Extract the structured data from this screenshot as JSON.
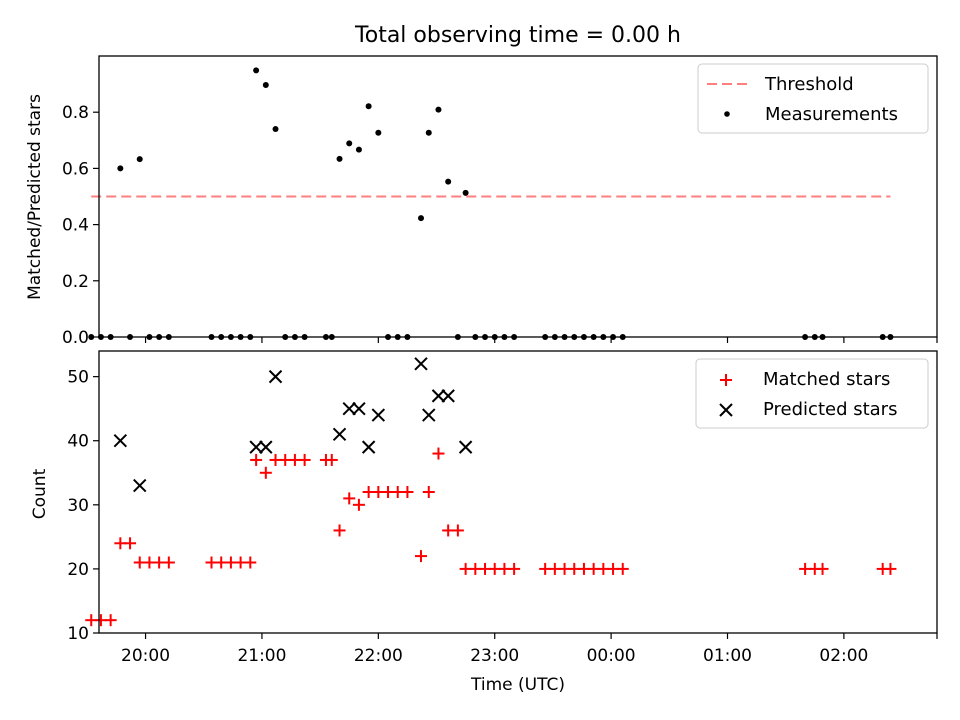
{
  "chart_data": [
    {
      "type": "scatter",
      "title": "Total observing time = 0.00 h",
      "ylabel": "Matched/Predicted stars",
      "ylim": [
        0,
        1.0
      ],
      "yticks": [
        0.0,
        0.2,
        0.4,
        0.6,
        0.8
      ],
      "ytick_labels": [
        "0.0",
        "0.2",
        "0.4",
        "0.6",
        "0.8"
      ],
      "xlim": [
        "19:36",
        "02:48"
      ],
      "x_unit": "time (UTC)",
      "legend": {
        "placement": "top-right",
        "threshold_label": "Threshold",
        "measurements_label": "Measurements"
      },
      "threshold": {
        "value": 0.5,
        "x_start": "19:32",
        "x_end": "02:24",
        "color": "#ff7f7f",
        "style": "dashed"
      },
      "series": [
        {
          "name": "Measurements",
          "color": "#000000",
          "marker": "dot",
          "points": [
            [
              "19:32",
              0.0
            ],
            [
              "19:37",
              0.0
            ],
            [
              "19:42",
              0.0
            ],
            [
              "19:47",
              0.6
            ],
            [
              "19:52",
              0.0
            ],
            [
              "19:57",
              0.633
            ],
            [
              "20:02",
              0.0
            ],
            [
              "20:07",
              0.0
            ],
            [
              "20:12",
              0.0
            ],
            [
              "20:34",
              0.0
            ],
            [
              "20:39",
              0.0
            ],
            [
              "20:44",
              0.0
            ],
            [
              "20:49",
              0.0
            ],
            [
              "20:54",
              0.0
            ],
            [
              "20:57",
              0.949
            ],
            [
              "21:02",
              0.897
            ],
            [
              "21:07",
              0.74
            ],
            [
              "21:12",
              0.0
            ],
            [
              "21:17",
              0.0
            ],
            [
              "21:22",
              0.0
            ],
            [
              "21:33",
              0.0
            ],
            [
              "21:36",
              0.0
            ],
            [
              "21:40",
              0.634
            ],
            [
              "21:45",
              0.689
            ],
            [
              "21:50",
              0.667
            ],
            [
              "21:55",
              0.821
            ],
            [
              "22:00",
              0.727
            ],
            [
              "22:05",
              0.0
            ],
            [
              "22:10",
              0.0
            ],
            [
              "22:15",
              0.0
            ],
            [
              "22:22",
              0.423
            ],
            [
              "22:26",
              0.727
            ],
            [
              "22:31",
              0.809
            ],
            [
              "22:36",
              0.553
            ],
            [
              "22:41",
              0.0
            ],
            [
              "22:45",
              0.513
            ],
            [
              "22:50",
              0.0
            ],
            [
              "22:55",
              0.0
            ],
            [
              "23:00",
              0.0
            ],
            [
              "23:05",
              0.0
            ],
            [
              "23:10",
              0.0
            ],
            [
              "23:26",
              0.0
            ],
            [
              "23:31",
              0.0
            ],
            [
              "23:36",
              0.0
            ],
            [
              "23:41",
              0.0
            ],
            [
              "23:46",
              0.0
            ],
            [
              "23:51",
              0.0
            ],
            [
              "23:56",
              0.0
            ],
            [
              "00:01",
              0.0
            ],
            [
              "00:06",
              0.0
            ],
            [
              "01:40",
              0.0
            ],
            [
              "01:45",
              0.0
            ],
            [
              "01:49",
              0.0
            ],
            [
              "02:20",
              0.0
            ],
            [
              "02:24",
              0.0
            ]
          ]
        }
      ]
    },
    {
      "type": "scatter",
      "xlabel": "Time (UTC)",
      "ylabel": "Count",
      "ylim": [
        10,
        54
      ],
      "yticks": [
        10,
        20,
        30,
        40,
        50
      ],
      "ytick_labels": [
        "10",
        "20",
        "30",
        "40",
        "50"
      ],
      "xlim": [
        "19:36",
        "02:48"
      ],
      "xticks": [
        "20:00",
        "21:00",
        "22:00",
        "23:00",
        "00:00",
        "01:00",
        "02:00"
      ],
      "xtick_labels": [
        "20:00",
        "21:00",
        "22:00",
        "23:00",
        "00:00",
        "01:00",
        "02:00"
      ],
      "legend": {
        "placement": "top-right",
        "matched_label": "Matched stars",
        "predicted_label": "Predicted stars"
      },
      "series": [
        {
          "name": "Matched stars",
          "color": "#ff0000",
          "marker": "plus",
          "points": [
            [
              "19:32",
              12
            ],
            [
              "19:37",
              12
            ],
            [
              "19:42",
              12
            ],
            [
              "19:47",
              24
            ],
            [
              "19:52",
              24
            ],
            [
              "19:57",
              21
            ],
            [
              "20:02",
              21
            ],
            [
              "20:07",
              21
            ],
            [
              "20:12",
              21
            ],
            [
              "20:34",
              21
            ],
            [
              "20:39",
              21
            ],
            [
              "20:44",
              21
            ],
            [
              "20:49",
              21
            ],
            [
              "20:54",
              21
            ],
            [
              "20:57",
              37
            ],
            [
              "21:02",
              35
            ],
            [
              "21:07",
              37
            ],
            [
              "21:12",
              37
            ],
            [
              "21:17",
              37
            ],
            [
              "21:22",
              37
            ],
            [
              "21:33",
              37
            ],
            [
              "21:36",
              37
            ],
            [
              "21:40",
              26
            ],
            [
              "21:45",
              31
            ],
            [
              "21:50",
              30
            ],
            [
              "21:55",
              32
            ],
            [
              "22:00",
              32
            ],
            [
              "22:05",
              32
            ],
            [
              "22:10",
              32
            ],
            [
              "22:15",
              32
            ],
            [
              "22:22",
              22
            ],
            [
              "22:26",
              32
            ],
            [
              "22:31",
              38
            ],
            [
              "22:36",
              26
            ],
            [
              "22:41",
              26
            ],
            [
              "22:45",
              20
            ],
            [
              "22:50",
              20
            ],
            [
              "22:55",
              20
            ],
            [
              "23:00",
              20
            ],
            [
              "23:05",
              20
            ],
            [
              "23:10",
              20
            ],
            [
              "23:26",
              20
            ],
            [
              "23:31",
              20
            ],
            [
              "23:36",
              20
            ],
            [
              "23:41",
              20
            ],
            [
              "23:46",
              20
            ],
            [
              "23:51",
              20
            ],
            [
              "23:56",
              20
            ],
            [
              "00:01",
              20
            ],
            [
              "00:06",
              20
            ],
            [
              "01:40",
              20
            ],
            [
              "01:45",
              20
            ],
            [
              "01:49",
              20
            ],
            [
              "02:20",
              20
            ],
            [
              "02:24",
              20
            ]
          ]
        },
        {
          "name": "Predicted stars",
          "color": "#000000",
          "marker": "x",
          "points": [
            [
              "19:47",
              40
            ],
            [
              "19:57",
              33
            ],
            [
              "20:57",
              39
            ],
            [
              "21:02",
              39
            ],
            [
              "21:07",
              50
            ],
            [
              "21:40",
              41
            ],
            [
              "21:45",
              45
            ],
            [
              "21:50",
              45
            ],
            [
              "21:55",
              39
            ],
            [
              "22:00",
              44
            ],
            [
              "22:22",
              52
            ],
            [
              "22:26",
              44
            ],
            [
              "22:31",
              47
            ],
            [
              "22:36",
              47
            ],
            [
              "22:45",
              39
            ]
          ]
        }
      ]
    }
  ]
}
